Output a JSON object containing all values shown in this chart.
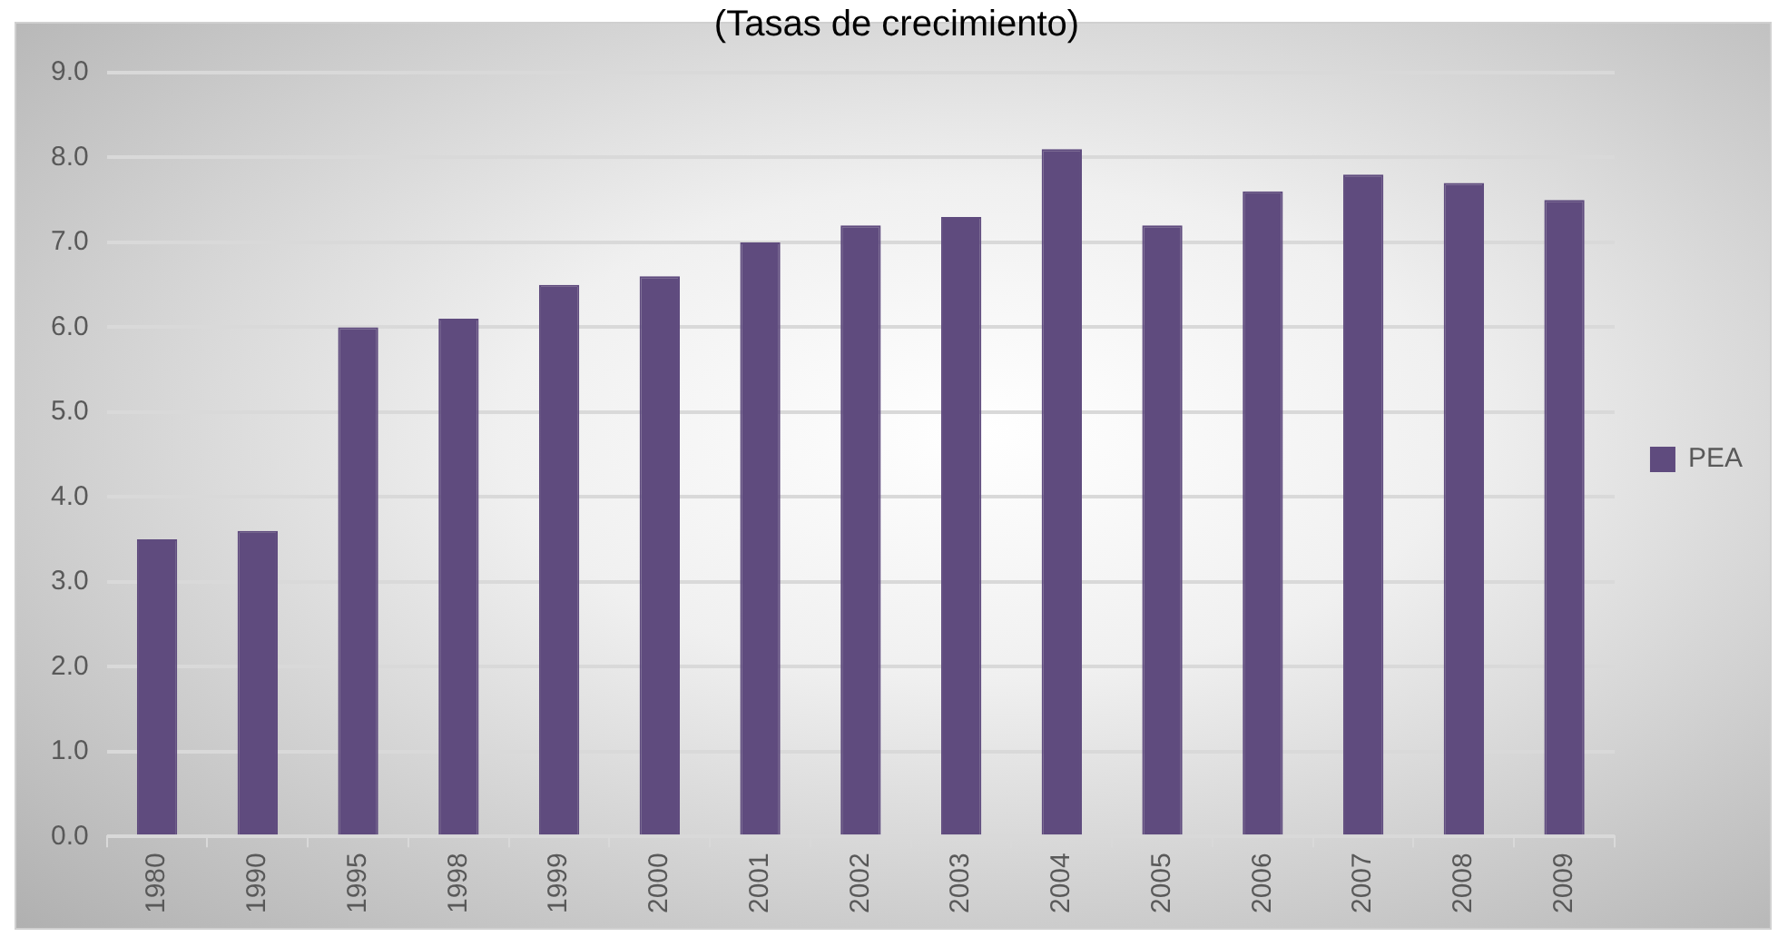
{
  "chart_data": {
    "type": "bar",
    "title": "(Tasas de crecimiento)",
    "categories": [
      "1980",
      "1990",
      "1995",
      "1998",
      "1999",
      "2000",
      "2001",
      "2002",
      "2003",
      "2004",
      "2005",
      "2006",
      "2007",
      "2008",
      "2009"
    ],
    "series": [
      {
        "name": "PEA",
        "color": "#5f4b7e",
        "values": [
          3.5,
          3.6,
          6.0,
          6.1,
          6.5,
          6.6,
          7.0,
          7.2,
          7.3,
          8.1,
          7.2,
          7.6,
          7.8,
          7.7,
          7.5
        ]
      }
    ],
    "ylim": [
      0,
      9
    ],
    "yticks": [
      {
        "value": 0,
        "label": "0.0"
      },
      {
        "value": 1,
        "label": "1.0"
      },
      {
        "value": 2,
        "label": "2.0"
      },
      {
        "value": 3,
        "label": "3.0"
      },
      {
        "value": 4,
        "label": "4.0"
      },
      {
        "value": 5,
        "label": "5.0"
      },
      {
        "value": 6,
        "label": "6.0"
      },
      {
        "value": 7,
        "label": "7.0"
      },
      {
        "value": 8,
        "label": "8.0"
      },
      {
        "value": 9,
        "label": "9.0"
      }
    ],
    "grid": "y",
    "legend": "right"
  }
}
